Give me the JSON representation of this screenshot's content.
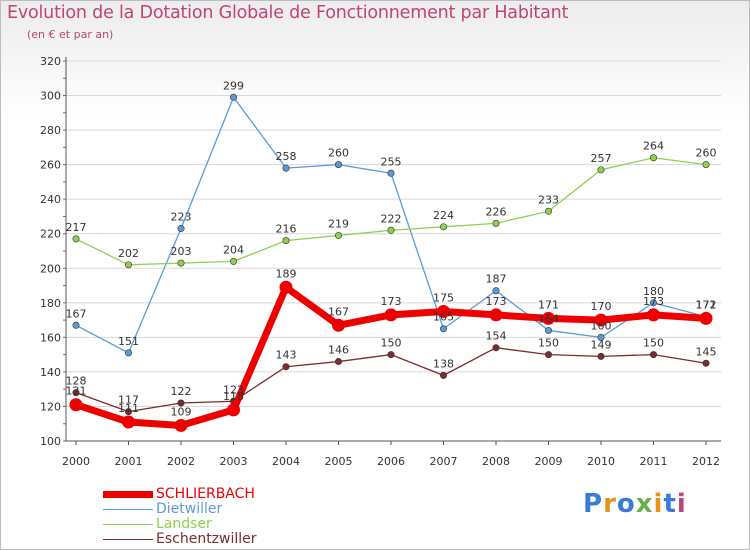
{
  "title": "Evolution de la Dotation Globale de Fonctionnement par Habitant",
  "subtitle": "(en € et par an)",
  "brand": {
    "text": "Proxiti",
    "colors": [
      "#3a7bd5",
      "#e8941a",
      "#3a7bd5",
      "#6ab04c",
      "#e8941a",
      "#3a7bd5",
      "#c0447a"
    ]
  },
  "chart_data": {
    "type": "line",
    "title": "Evolution de la Dotation Globale de Fonctionnement par Habitant",
    "ylabel": "(en € et par an)",
    "xlabel": "",
    "ylim": [
      100,
      320
    ],
    "yticks": [
      100,
      120,
      140,
      160,
      180,
      200,
      220,
      240,
      260,
      280,
      300,
      320
    ],
    "x": [
      "2000",
      "2001",
      "2002",
      "2003",
      "2004",
      "2005",
      "2006",
      "2007",
      "2008",
      "2009",
      "2010",
      "2011",
      "2012"
    ],
    "series": [
      {
        "name": "SCHLIERBACH",
        "color": "#ee0000",
        "thick": true,
        "values": [
          121,
          111,
          109,
          118,
          189,
          167,
          173,
          175,
          173,
          171,
          170,
          173,
          171
        ],
        "labels": [
          "121",
          "111",
          "109",
          "118",
          "189",
          "167",
          "173",
          "175",
          "173",
          "171",
          "170",
          "173",
          "171"
        ]
      },
      {
        "name": "Dietwiller",
        "color": "#5b9bd5",
        "thick": false,
        "values": [
          167,
          151,
          223,
          299,
          258,
          260,
          255,
          165,
          187,
          164,
          160,
          180,
          172
        ],
        "labels": [
          "167",
          "151",
          "223",
          "299",
          "258",
          "260",
          "255",
          "165",
          "187",
          "164",
          "160",
          "180",
          "172"
        ]
      },
      {
        "name": "Landser",
        "color": "#8fd14f",
        "thick": false,
        "values": [
          217,
          202,
          203,
          204,
          216,
          219,
          222,
          224,
          226,
          233,
          257,
          264,
          260
        ],
        "labels": [
          "217",
          "202",
          "203",
          "204",
          "216",
          "219",
          "222",
          "224",
          "226",
          "233",
          "257",
          "264",
          "260"
        ]
      },
      {
        "name": "Eschentzwiller",
        "color": "#7b2c2c",
        "thick": false,
        "values": [
          128,
          117,
          122,
          123,
          143,
          146,
          150,
          138,
          154,
          150,
          149,
          150,
          145
        ],
        "labels": [
          "128",
          "117",
          "122",
          "123",
          "143",
          "146",
          "150",
          "138",
          "154",
          "150",
          "149",
          "150",
          "145"
        ]
      }
    ]
  }
}
